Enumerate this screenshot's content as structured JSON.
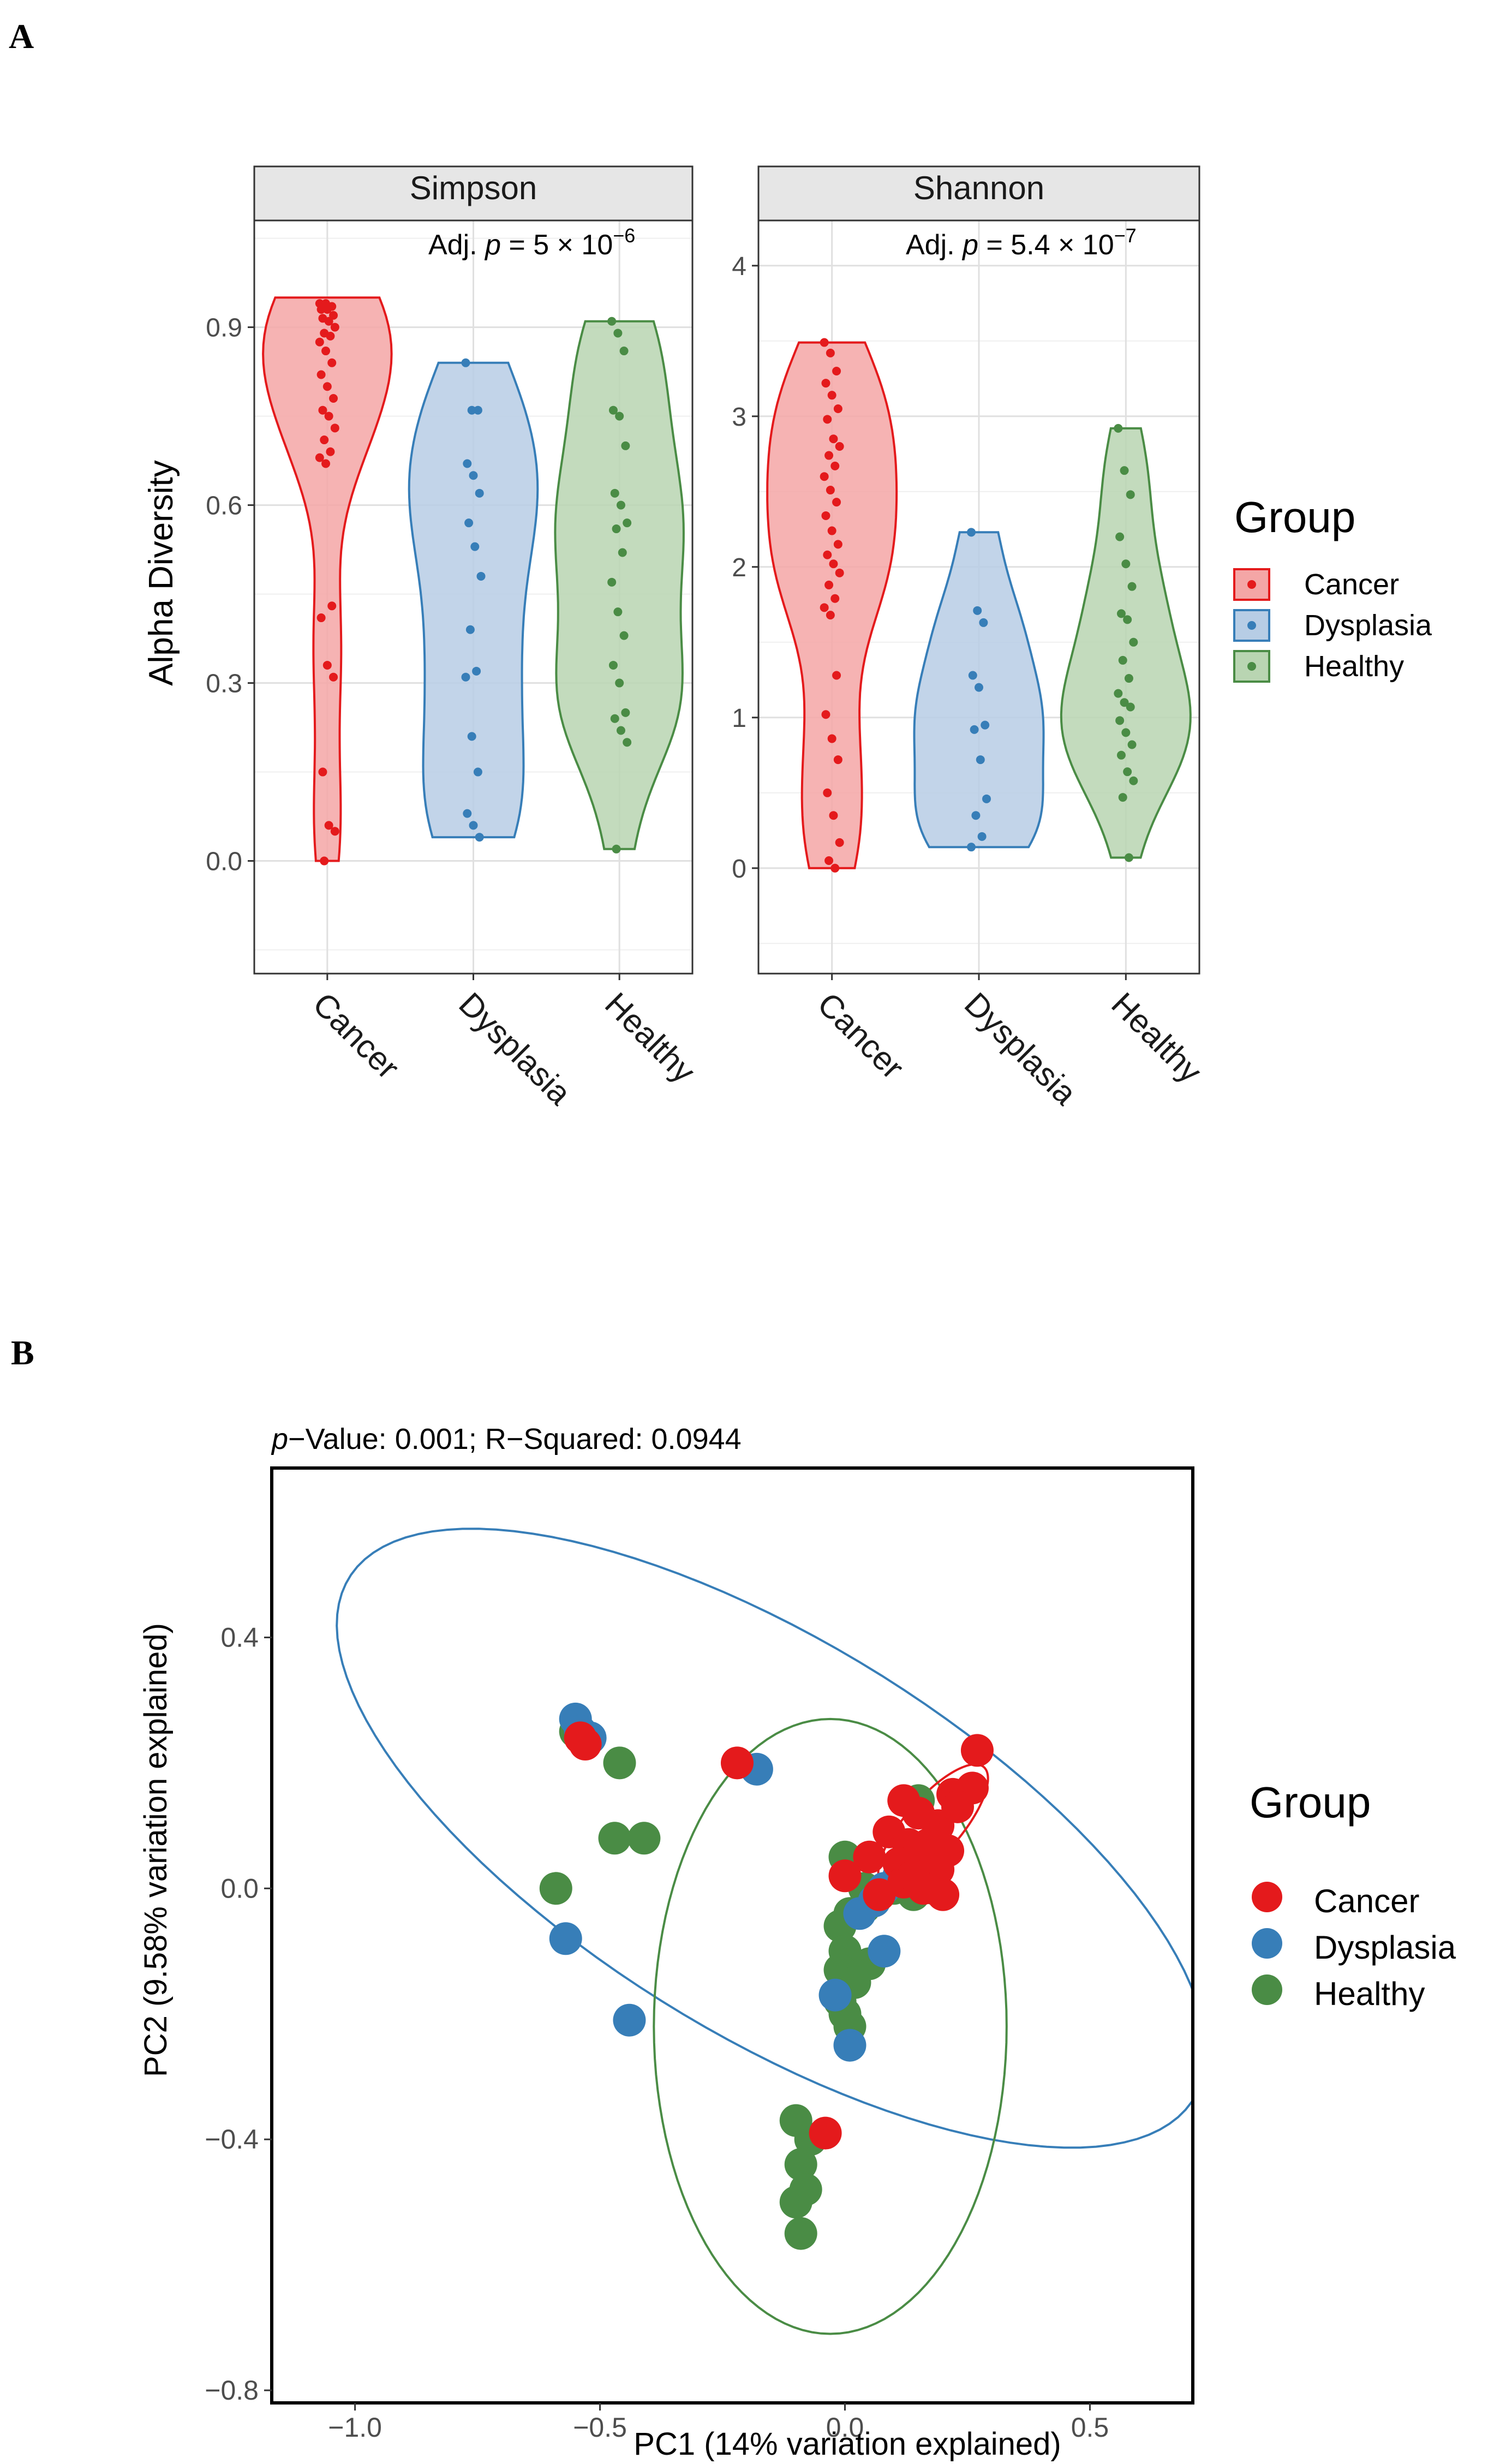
{
  "colors": {
    "cancer": "#E41A1C",
    "dysplasia": "#377EB8",
    "healthy": "#4A8C45",
    "cancer_fill": "#F4A6A6",
    "dysplasia_fill": "#B7CDE5",
    "healthy_fill": "#B9D5B2",
    "strip_fill": "#E6E6E6",
    "grid": "#E0E0E0"
  },
  "panel_a": {
    "label": "A",
    "ylabel": "Alpha Diversity",
    "legend": {
      "title": "Group",
      "items": [
        "Cancer",
        "Dysplasia",
        "Healthy"
      ]
    }
  },
  "panel_b": {
    "label": "B",
    "subtitle_prefix": "p",
    "subtitle_rest": "−Value: 0.001; R−Squared: 0.0944",
    "xlabel": "PC1 (14% variation explained)",
    "ylabel": "PC2 (9.58% variation explained)",
    "legend": {
      "title": "Group",
      "items": [
        "Cancer",
        "Dysplasia",
        "Healthy"
      ]
    }
  },
  "chart_data": [
    {
      "type": "violin",
      "facet": "Simpson",
      "annotation": {
        "prefix": "Adj. ",
        "p": "p",
        "eq": " = 5 × 10",
        "exp": "−6"
      },
      "categories": [
        "Cancer",
        "Dysplasia",
        "Healthy"
      ],
      "ylim": [
        -0.19,
        1.08
      ],
      "yticks": [
        0.0,
        0.3,
        0.6,
        0.9
      ],
      "ytick_labels": [
        "0.0",
        "0.3",
        "0.6",
        "0.9"
      ],
      "grid": true,
      "series": [
        {
          "name": "Cancer",
          "range": [
            0.0,
            0.95
          ],
          "points": [
            0.94,
            0.94,
            0.935,
            0.93,
            0.93,
            0.92,
            0.915,
            0.91,
            0.9,
            0.89,
            0.885,
            0.875,
            0.86,
            0.84,
            0.82,
            0.8,
            0.78,
            0.76,
            0.75,
            0.73,
            0.71,
            0.69,
            0.68,
            0.67,
            0.43,
            0.41,
            0.33,
            0.31,
            0.15,
            0.06,
            0.05,
            0.0
          ]
        },
        {
          "name": "Dysplasia",
          "range": [
            0.04,
            0.84
          ],
          "points": [
            0.84,
            0.76,
            0.76,
            0.67,
            0.65,
            0.62,
            0.57,
            0.53,
            0.48,
            0.39,
            0.32,
            0.31,
            0.21,
            0.15,
            0.08,
            0.06,
            0.04
          ]
        },
        {
          "name": "Healthy",
          "range": [
            0.02,
            0.91
          ],
          "points": [
            0.91,
            0.89,
            0.86,
            0.76,
            0.75,
            0.7,
            0.62,
            0.6,
            0.57,
            0.56,
            0.52,
            0.47,
            0.42,
            0.38,
            0.33,
            0.3,
            0.25,
            0.24,
            0.22,
            0.2,
            0.02
          ]
        }
      ]
    },
    {
      "type": "violin",
      "facet": "Shannon",
      "annotation": {
        "prefix": "Adj. ",
        "p": "p",
        "eq": " = 5.4 × 10",
        "exp": "−7"
      },
      "categories": [
        "Cancer",
        "Dysplasia",
        "Healthy"
      ],
      "ylim": [
        -0.7,
        4.3
      ],
      "yticks": [
        0,
        1,
        2,
        3,
        4
      ],
      "ytick_labels": [
        "0",
        "1",
        "2",
        "3",
        "4"
      ],
      "grid": true,
      "series": [
        {
          "name": "Cancer",
          "range": [
            0.0,
            3.49
          ],
          "points": [
            3.49,
            3.42,
            3.3,
            3.22,
            3.14,
            3.05,
            2.98,
            2.85,
            2.8,
            2.74,
            2.67,
            2.6,
            2.51,
            2.43,
            2.34,
            2.24,
            2.15,
            2.08,
            2.02,
            1.96,
            1.88,
            1.79,
            1.73,
            1.68,
            1.28,
            1.02,
            0.86,
            0.72,
            0.5,
            0.35,
            0.17,
            0.05,
            0.0
          ]
        },
        {
          "name": "Dysplasia",
          "range": [
            0.14,
            2.23
          ],
          "points": [
            2.23,
            1.71,
            1.63,
            1.28,
            1.2,
            0.95,
            0.92,
            0.72,
            0.46,
            0.35,
            0.21,
            0.14
          ]
        },
        {
          "name": "Healthy",
          "range": [
            0.07,
            2.92
          ],
          "points": [
            2.92,
            2.64,
            2.48,
            2.2,
            2.02,
            1.87,
            1.69,
            1.65,
            1.5,
            1.38,
            1.26,
            1.16,
            1.1,
            1.07,
            0.98,
            0.9,
            0.82,
            0.75,
            0.64,
            0.58,
            0.47,
            0.07
          ]
        }
      ]
    },
    {
      "type": "scatter",
      "xlim": [
        -1.17,
        0.71
      ],
      "ylim": [
        -0.82,
        0.67
      ],
      "xticks": [
        -1.0,
        -0.5,
        0.0,
        0.5
      ],
      "xtick_labels": [
        "−1.0",
        "−0.5",
        "0.0",
        "0.5"
      ],
      "yticks": [
        -0.8,
        -0.4,
        0.0,
        0.4
      ],
      "ytick_labels": [
        "−0.8",
        "−0.4",
        "0.0",
        "0.4"
      ],
      "grid": false,
      "legend_position": "right",
      "series": [
        {
          "name": "Cancer",
          "points": [
            [
              -0.54,
              0.24
            ],
            [
              -0.53,
              0.23
            ],
            [
              -0.22,
              0.2
            ],
            [
              0.27,
              0.22
            ],
            [
              0.12,
              0.14
            ],
            [
              0.22,
              0.15
            ],
            [
              0.26,
              0.16
            ],
            [
              0.15,
              0.12
            ],
            [
              0.19,
              0.1
            ],
            [
              0.23,
              0.13
            ],
            [
              0.09,
              0.09
            ],
            [
              0.13,
              0.07
            ],
            [
              0.17,
              0.07
            ],
            [
              0.21,
              0.06
            ],
            [
              0.11,
              0.04
            ],
            [
              0.15,
              0.04
            ],
            [
              0.19,
              0.03
            ],
            [
              0.12,
              0.01
            ],
            [
              0.14,
              0.02
            ],
            [
              0.16,
              0.0
            ],
            [
              0.2,
              -0.01
            ],
            [
              0.05,
              0.05
            ],
            [
              0.0,
              0.02
            ],
            [
              0.07,
              -0.01
            ],
            [
              -0.04,
              -0.39
            ]
          ]
        },
        {
          "name": "Dysplasia",
          "points": [
            [
              -0.55,
              0.27
            ],
            [
              -0.54,
              0.25
            ],
            [
              -0.52,
              0.24
            ],
            [
              -0.18,
              0.19
            ],
            [
              -0.57,
              -0.08
            ],
            [
              -0.44,
              -0.21
            ],
            [
              0.13,
              0.05
            ],
            [
              0.11,
              0.02
            ],
            [
              0.08,
              0.0
            ],
            [
              0.06,
              -0.02
            ],
            [
              0.03,
              -0.04
            ],
            [
              0.08,
              -0.1
            ],
            [
              -0.02,
              -0.17
            ],
            [
              0.01,
              -0.25
            ]
          ]
        },
        {
          "name": "Healthy",
          "points": [
            [
              -0.55,
              0.25
            ],
            [
              -0.46,
              0.2
            ],
            [
              -0.47,
              0.08
            ],
            [
              -0.41,
              0.08
            ],
            [
              -0.59,
              0.0
            ],
            [
              0.0,
              0.05
            ],
            [
              0.04,
              0.0
            ],
            [
              0.1,
              0.0
            ],
            [
              0.14,
              -0.01
            ],
            [
              0.18,
              0.0
            ],
            [
              0.01,
              -0.04
            ],
            [
              -0.01,
              -0.06
            ],
            [
              0.04,
              -0.03
            ],
            [
              0.0,
              -0.1
            ],
            [
              0.05,
              -0.12
            ],
            [
              -0.01,
              -0.13
            ],
            [
              0.02,
              -0.15
            ],
            [
              -0.01,
              -0.18
            ],
            [
              0.0,
              -0.2
            ],
            [
              0.01,
              -0.22
            ],
            [
              -0.1,
              -0.37
            ],
            [
              -0.07,
              -0.4
            ],
            [
              -0.09,
              -0.44
            ],
            [
              -0.08,
              -0.48
            ],
            [
              -0.1,
              -0.5
            ],
            [
              -0.09,
              -0.55
            ],
            [
              0.15,
              0.14
            ]
          ]
        }
      ]
    }
  ]
}
